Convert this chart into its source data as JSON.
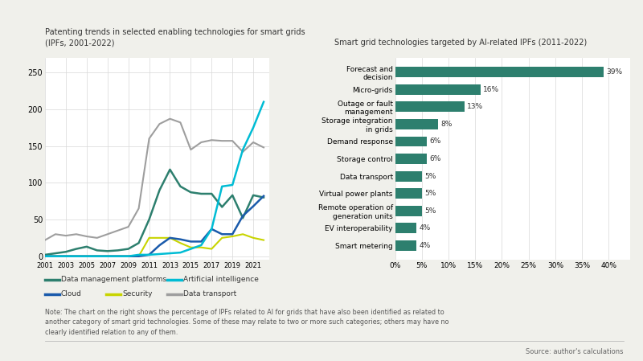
{
  "left_title": "Patenting trends in selected enabling technologies for smart grids\n(IPFs, 2001-2022)",
  "right_title": "Smart grid technologies targeted by AI-related IPFs (2011-2022)",
  "years": [
    2001,
    2002,
    2003,
    2004,
    2005,
    2006,
    2007,
    2008,
    2009,
    2010,
    2011,
    2012,
    2013,
    2014,
    2015,
    2016,
    2017,
    2018,
    2019,
    2020,
    2021,
    2022
  ],
  "data_management": [
    2,
    4,
    6,
    10,
    13,
    8,
    7,
    8,
    10,
    18,
    50,
    90,
    118,
    95,
    87,
    85,
    85,
    67,
    83,
    52,
    83,
    80
  ],
  "artificial_intelligence": [
    0,
    0,
    0,
    0,
    0,
    0,
    0,
    0,
    0,
    2,
    2,
    3,
    4,
    5,
    10,
    15,
    37,
    95,
    97,
    145,
    175,
    210
  ],
  "cloud": [
    0,
    0,
    0,
    0,
    0,
    0,
    0,
    0,
    0,
    0,
    2,
    15,
    25,
    23,
    20,
    20,
    37,
    30,
    30,
    55,
    68,
    82
  ],
  "security": [
    0,
    0,
    0,
    0,
    0,
    0,
    0,
    0,
    0,
    0,
    25,
    25,
    25,
    18,
    12,
    12,
    10,
    25,
    27,
    30,
    25,
    22
  ],
  "data_transport": [
    22,
    30,
    28,
    30,
    27,
    25,
    30,
    35,
    40,
    65,
    160,
    180,
    187,
    182,
    145,
    155,
    158,
    157,
    157,
    142,
    155,
    148
  ],
  "line_colors": {
    "data_management": "#2d7f6e",
    "artificial_intelligence": "#00bcd4",
    "cloud": "#1a5aab",
    "security": "#c8d400",
    "data_transport": "#9e9e9e"
  },
  "bar_categories": [
    "Forecast and\ndecision",
    "Micro-grids",
    "Outage or fault\nmanagement",
    "Storage integration\nin grids",
    "Demand response",
    "Storage control",
    "Data transport",
    "Virtual power plants",
    "Remote operation of\ngeneration units",
    "EV interoperability",
    "Smart metering"
  ],
  "bar_values": [
    39,
    16,
    13,
    8,
    6,
    6,
    5,
    5,
    5,
    4,
    4
  ],
  "bar_color": "#2d7f6e",
  "bar_labels": [
    "39%",
    "16%",
    "13%",
    "8%",
    "6%",
    "6%",
    "5%",
    "5%",
    "5%",
    "4%",
    "4%"
  ],
  "x_ticks_right": [
    0,
    5,
    10,
    15,
    20,
    25,
    30,
    35,
    40
  ],
  "note": "Note: The chart on the right shows the percentage of IPFs related to AI for grids that have also been identified as related to\nanother category of smart grid technologies. Some of these may relate to two or more such categories; others may have no\nclearly identified relation to any of them.",
  "source": "Source: author's calculations",
  "background_color": "#f0f0eb",
  "plot_bg": "#ffffff"
}
